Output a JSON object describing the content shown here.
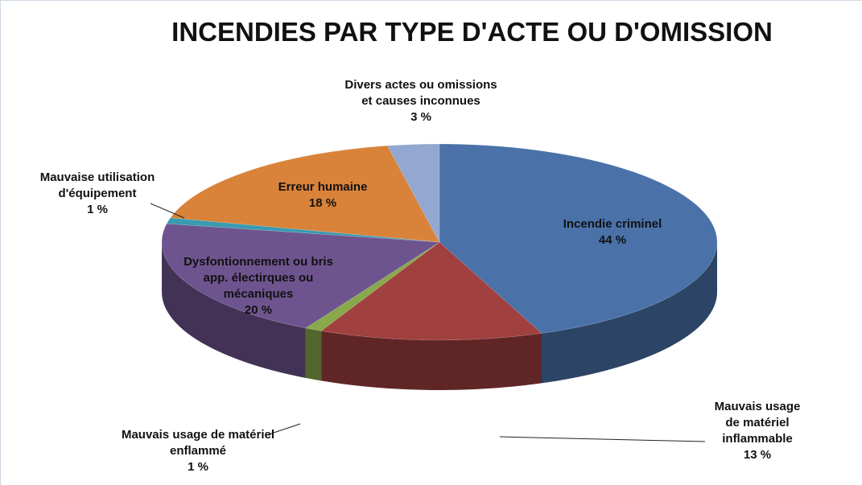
{
  "chart_data": {
    "type": "pie",
    "title": "INCENDIES PAR TYPE D'ACTE OU D'OMISSION",
    "categories": [
      "Incendie criminel",
      "Mauvais usage de matériel inflammable",
      "Mauvais usage de matériel enflammé",
      "Dysfontionnement ou bris app. électirques ou mécaniques",
      "Mauvaise utilisation d'équipement",
      "Erreur humaine",
      "Divers actes ou omissions et causes inconnues"
    ],
    "values": [
      44,
      13,
      1,
      20,
      1,
      18,
      3
    ],
    "value_labels": [
      "44 %",
      "13 %",
      "1 %",
      "20 %",
      "1 %",
      "18 %",
      "3 %"
    ],
    "colors": [
      "#4a72a8",
      "#a0403f",
      "#88a84a",
      "#6e548f",
      "#3a9ab0",
      "#d9823a",
      "#93a8d0"
    ]
  }
}
